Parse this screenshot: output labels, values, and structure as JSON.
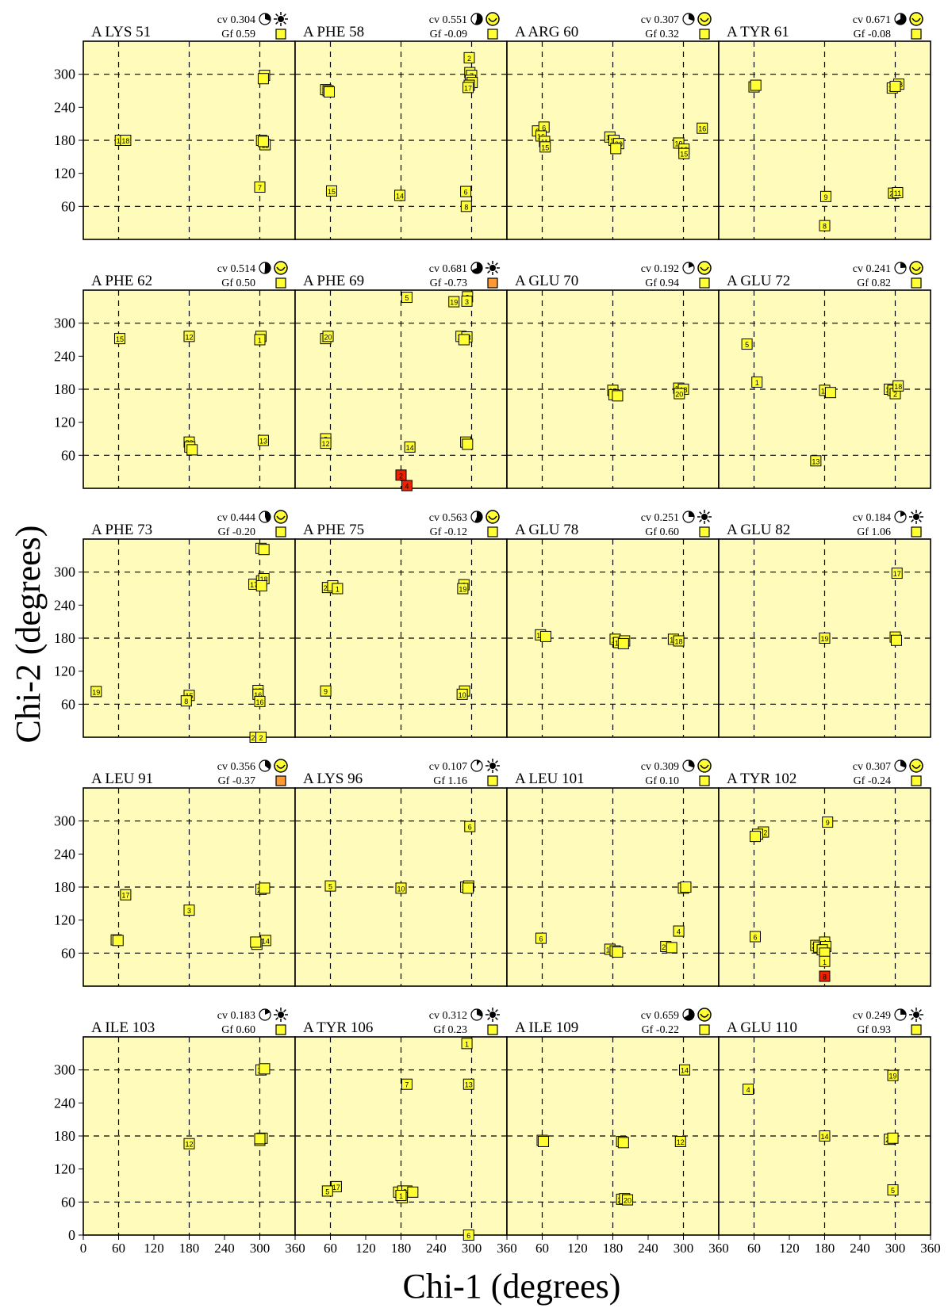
{
  "x_axis_title": "Chi-1 (degrees)",
  "y_axis_title": "Chi-2 (degrees)",
  "chart_data": {
    "type": "scatter",
    "grid": true,
    "colors": {
      "panel_bg": "#fffcbb",
      "high": "#ffff33",
      "mid": "#ff9933",
      "low": "#ee2200",
      "border": "#000000"
    },
    "xlabel": "Chi-1 (degrees)",
    "ylabel": "Chi-2 (degrees)",
    "xlim": [
      0,
      360
    ],
    "ylim": [
      0,
      360
    ],
    "x_ticks": [
      0,
      60,
      120,
      180,
      240,
      300,
      360
    ],
    "y_ticks": [
      0,
      60,
      120,
      180,
      240,
      300
    ],
    "panels": [
      {
        "title": "A LYS 51",
        "cv": "cv 0.304",
        "gf": "Gf  0.59",
        "cv_fraction": 0.304,
        "gf_color": "#ffff33",
        "icon": "sun",
        "points": [
          [
            63,
            180,
            "13"
          ],
          [
            72,
            180,
            "18"
          ],
          [
            303,
            180,
            "16"
          ],
          [
            309,
            172,
            "11"
          ],
          [
            306,
            178,
            ""
          ],
          [
            300,
            95,
            "7"
          ],
          [
            308,
            298,
            "19"
          ],
          [
            306,
            292,
            ""
          ]
        ]
      },
      {
        "title": "A PHE 58",
        "cv": "cv 0.551",
        "gf": "Gf -0.09",
        "cv_fraction": 0.551,
        "gf_color": "#ffff33",
        "icon": "smile",
        "points": [
          [
            296,
            330,
            "2"
          ],
          [
            297,
            303,
            "3"
          ],
          [
            300,
            298,
            "7"
          ],
          [
            298,
            289,
            "1"
          ],
          [
            301,
            285,
            ""
          ],
          [
            296,
            280,
            ""
          ],
          [
            294,
            276,
            "17"
          ],
          [
            52,
            272,
            "19"
          ],
          [
            56,
            270,
            ""
          ],
          [
            58,
            268,
            ""
          ],
          [
            62,
            88,
            "15"
          ],
          [
            178,
            80,
            "14"
          ],
          [
            290,
            87,
            "6"
          ],
          [
            291,
            60,
            "8"
          ]
        ]
      },
      {
        "title": "A ARG 60",
        "cv": "cv 0.307",
        "gf": "Gf  0.32",
        "cv_fraction": 0.307,
        "gf_color": "#ffff33",
        "icon": "smile",
        "points": [
          [
            52,
            197,
            "3"
          ],
          [
            63,
            204,
            "6"
          ],
          [
            58,
            188,
            "16"
          ],
          [
            64,
            178,
            "11"
          ],
          [
            65,
            168,
            "15"
          ],
          [
            175,
            186,
            "18"
          ],
          [
            182,
            180,
            "14"
          ],
          [
            190,
            174,
            "20"
          ],
          [
            185,
            165,
            ""
          ],
          [
            292,
            175,
            "19"
          ],
          [
            301,
            164,
            "13"
          ],
          [
            301,
            156,
            "15"
          ],
          [
            332,
            202,
            "16"
          ]
        ]
      },
      {
        "title": "A TYR 61",
        "cv": "cv 0.671",
        "gf": "Gf -0.08",
        "cv_fraction": 0.671,
        "gf_color": "#ffff33",
        "icon": "smile",
        "points": [
          [
            60,
            277,
            "17"
          ],
          [
            63,
            280,
            ""
          ],
          [
            295,
            275,
            "14"
          ],
          [
            306,
            282,
            "18"
          ],
          [
            300,
            278,
            ""
          ],
          [
            182,
            78,
            "9"
          ],
          [
            297,
            84,
            "20"
          ],
          [
            304,
            85,
            "11"
          ],
          [
            180,
            25,
            "8"
          ]
        ]
      },
      {
        "title": "A PHE 62",
        "cv": "cv 0.514",
        "gf": "Gf  0.50",
        "cv_fraction": 0.514,
        "gf_color": "#ffff33",
        "icon": "smile",
        "points": [
          [
            62,
            272,
            "15"
          ],
          [
            180,
            276,
            "12"
          ],
          [
            302,
            276,
            "16"
          ],
          [
            300,
            270,
            "1"
          ],
          [
            180,
            84,
            "20"
          ],
          [
            181,
            75,
            "18"
          ],
          [
            185,
            70,
            ""
          ],
          [
            306,
            87,
            "13"
          ]
        ]
      },
      {
        "title": "A PHE 69",
        "cv": "cv 0.681",
        "gf": "Gf -0.73",
        "cv_fraction": 0.681,
        "gf_color": "#ff9933",
        "icon": "sun",
        "points": [
          [
            190,
            347,
            "5"
          ],
          [
            270,
            339,
            "19"
          ],
          [
            293,
            348,
            "9"
          ],
          [
            292,
            340,
            "3"
          ],
          [
            52,
            272,
            "13"
          ],
          [
            56,
            276,
            "20"
          ],
          [
            282,
            276,
            "11"
          ],
          [
            292,
            275,
            "18"
          ],
          [
            287,
            270,
            ""
          ],
          [
            52,
            90,
            "3"
          ],
          [
            52,
            82,
            "12"
          ],
          [
            195,
            75,
            "14"
          ],
          [
            290,
            84,
            "16"
          ],
          [
            293,
            80,
            ""
          ],
          [
            180,
            24,
            "2"
          ],
          [
            190,
            5,
            "4"
          ]
        ]
      },
      {
        "title": "A GLU 70",
        "cv": "cv 0.192",
        "gf": "Gf  0.94",
        "cv_fraction": 0.192,
        "gf_color": "#ffff33",
        "icon": "smile",
        "points": [
          [
            180,
            178,
            "17"
          ],
          [
            182,
            170,
            ""
          ],
          [
            188,
            168,
            ""
          ],
          [
            292,
            182,
            "19"
          ],
          [
            300,
            180,
            "18"
          ],
          [
            293,
            172,
            "20"
          ]
        ]
      },
      {
        "title": "A GLU 72",
        "cv": "cv 0.241",
        "gf": "Gf  0.82",
        "cv_fraction": 0.241,
        "gf_color": "#ffff33",
        "icon": "smile",
        "points": [
          [
            48,
            262,
            "5"
          ],
          [
            65,
            193,
            "1"
          ],
          [
            180,
            178,
            "11"
          ],
          [
            190,
            174,
            ""
          ],
          [
            290,
            180,
            "18"
          ],
          [
            296,
            178,
            "20"
          ],
          [
            300,
            172,
            "2"
          ],
          [
            305,
            186,
            "18"
          ],
          [
            165,
            50,
            "13"
          ]
        ]
      },
      {
        "title": "A PHE 73",
        "cv": "cv 0.444",
        "gf": "Gf -0.20",
        "cv_fraction": 0.444,
        "gf_color": "#ffff33",
        "icon": "smile",
        "points": [
          [
            302,
            343,
            "7"
          ],
          [
            307,
            341,
            ""
          ],
          [
            290,
            278,
            "17"
          ],
          [
            303,
            284,
            "16"
          ],
          [
            307,
            288,
            "18"
          ],
          [
            303,
            275,
            ""
          ],
          [
            22,
            83,
            "19"
          ],
          [
            180,
            76,
            "15"
          ],
          [
            175,
            66,
            "8"
          ],
          [
            297,
            85,
            "15"
          ],
          [
            297,
            78,
            "16"
          ],
          [
            300,
            65,
            "16"
          ],
          [
            292,
            0,
            "20"
          ],
          [
            302,
            0,
            "2"
          ]
        ]
      },
      {
        "title": "A PHE 75",
        "cv": "cv 0.563",
        "gf": "Gf -0.12",
        "cv_fraction": 0.563,
        "gf_color": "#ffff33",
        "icon": "smile",
        "points": [
          [
            55,
            272,
            "20"
          ],
          [
            64,
            275,
            ""
          ],
          [
            72,
            270,
            "1"
          ],
          [
            287,
            277,
            "3"
          ],
          [
            285,
            270,
            "19"
          ],
          [
            52,
            84,
            "9"
          ],
          [
            288,
            84,
            "3"
          ],
          [
            284,
            78,
            "10"
          ]
        ]
      },
      {
        "title": "A GLU 78",
        "cv": "cv 0.251",
        "gf": "Gf  0.60",
        "cv_fraction": 0.251,
        "gf_color": "#ffff33",
        "icon": "sun",
        "points": [
          [
            57,
            186,
            "17"
          ],
          [
            66,
            183,
            ""
          ],
          [
            184,
            178,
            "18"
          ],
          [
            190,
            172,
            "14"
          ],
          [
            200,
            175,
            "20"
          ],
          [
            198,
            170,
            ""
          ],
          [
            283,
            178,
            "11"
          ],
          [
            292,
            175,
            "18"
          ]
        ]
      },
      {
        "title": "A GLU 82",
        "cv": "cv 0.184",
        "gf": "Gf  1.06",
        "cv_fraction": 0.184,
        "gf_color": "#ffff33",
        "icon": "sun",
        "points": [
          [
            303,
            298,
            "17"
          ],
          [
            180,
            180,
            "19"
          ],
          [
            300,
            182,
            "18"
          ],
          [
            302,
            176,
            ""
          ]
        ]
      },
      {
        "title": "A LEU 91",
        "cv": "cv 0.356",
        "gf": "Gf -0.37",
        "cv_fraction": 0.356,
        "gf_color": "#ff9933",
        "icon": "smile",
        "points": [
          [
            72,
            166,
            "17"
          ],
          [
            180,
            138,
            "3"
          ],
          [
            302,
            176,
            "20"
          ],
          [
            308,
            178,
            ""
          ],
          [
            56,
            84,
            "15"
          ],
          [
            59,
            83,
            ""
          ],
          [
            310,
            83,
            "14"
          ],
          [
            295,
            76,
            "18"
          ],
          [
            293,
            80,
            ""
          ]
        ]
      },
      {
        "title": "A LYS 96",
        "cv": "cv 0.107",
        "gf": "Gf  1.16",
        "cv_fraction": 0.107,
        "gf_color": "#ffff33",
        "icon": "sun",
        "points": [
          [
            297,
            290,
            "6"
          ],
          [
            60,
            182,
            "5"
          ],
          [
            180,
            178,
            "10"
          ],
          [
            290,
            180,
            "20"
          ],
          [
            295,
            182,
            ""
          ],
          [
            294,
            178,
            ""
          ]
        ]
      },
      {
        "title": "A LEU 101",
        "cv": "cv 0.309",
        "gf": "Gf  0.10",
        "cv_fraction": 0.309,
        "gf_color": "#ffff33",
        "icon": "smile",
        "points": [
          [
            300,
            178,
            "19"
          ],
          [
            304,
            180,
            ""
          ],
          [
            58,
            87,
            "6"
          ],
          [
            292,
            100,
            "4"
          ],
          [
            270,
            72,
            "20"
          ],
          [
            280,
            70,
            ""
          ],
          [
            175,
            67,
            "18"
          ],
          [
            184,
            64,
            "18"
          ],
          [
            188,
            62,
            ""
          ]
        ]
      },
      {
        "title": "A TYR 102",
        "cv": "cv 0.307",
        "gf": "Gf -0.24",
        "cv_fraction": 0.307,
        "gf_color": "#ffff33",
        "icon": "smile",
        "points": [
          [
            185,
            298,
            "9"
          ],
          [
            76,
            280,
            "12"
          ],
          [
            66,
            276,
            "17"
          ],
          [
            62,
            272,
            ""
          ],
          [
            62,
            90,
            "6"
          ],
          [
            165,
            74,
            "20"
          ],
          [
            170,
            71,
            ""
          ],
          [
            180,
            80,
            "4"
          ],
          [
            182,
            72,
            ""
          ],
          [
            176,
            66,
            "14"
          ],
          [
            180,
            60,
            ""
          ],
          [
            180,
            45,
            "1"
          ],
          [
            180,
            18,
            "8"
          ]
        ]
      },
      {
        "title": "A ILE 103",
        "cv": "cv 0.183",
        "gf": "Gf  0.60",
        "cv_fraction": 0.183,
        "gf_color": "#ffff33",
        "icon": "sun",
        "points": [
          [
            302,
            300,
            "11"
          ],
          [
            308,
            302,
            ""
          ],
          [
            180,
            166,
            "12"
          ],
          [
            300,
            172,
            "20"
          ],
          [
            304,
            176,
            ""
          ],
          [
            300,
            175,
            ""
          ]
        ]
      },
      {
        "title": "A TYR 106",
        "cv": "cv 0.312",
        "gf": "Gf  0.23",
        "cv_fraction": 0.312,
        "gf_color": "#ffff33",
        "icon": "sun",
        "points": [
          [
            292,
            348,
            "1"
          ],
          [
            190,
            274,
            "7"
          ],
          [
            295,
            274,
            "13"
          ],
          [
            70,
            88,
            "17"
          ],
          [
            55,
            80,
            "5"
          ],
          [
            176,
            78,
            "19"
          ],
          [
            183,
            80,
            ""
          ],
          [
            190,
            80,
            "20"
          ],
          [
            200,
            78,
            ""
          ],
          [
            182,
            68,
            "16"
          ],
          [
            180,
            72,
            "1"
          ],
          [
            295,
            0,
            "6"
          ]
        ]
      },
      {
        "title": "A ILE 109",
        "cv": "cv 0.659",
        "gf": "Gf -0.22",
        "cv_fraction": 0.659,
        "gf_color": "#ffff33",
        "icon": "smile",
        "points": [
          [
            302,
            300,
            "14"
          ],
          [
            60,
            172,
            "19"
          ],
          [
            62,
            170,
            ""
          ],
          [
            195,
            170,
            "17"
          ],
          [
            198,
            168,
            ""
          ],
          [
            295,
            170,
            "12"
          ],
          [
            195,
            65,
            "20"
          ],
          [
            200,
            66,
            ""
          ],
          [
            205,
            64,
            "20"
          ]
        ]
      },
      {
        "title": "A GLU 110",
        "cv": "cv 0.249",
        "gf": "Gf  0.93",
        "cv_fraction": 0.249,
        "gf_color": "#ffff33",
        "icon": "sun",
        "points": [
          [
            50,
            265,
            "4"
          ],
          [
            296,
            290,
            "19"
          ],
          [
            180,
            180,
            "14"
          ],
          [
            290,
            174,
            "20"
          ],
          [
            296,
            176,
            ""
          ],
          [
            296,
            82,
            "5"
          ]
        ]
      }
    ]
  }
}
